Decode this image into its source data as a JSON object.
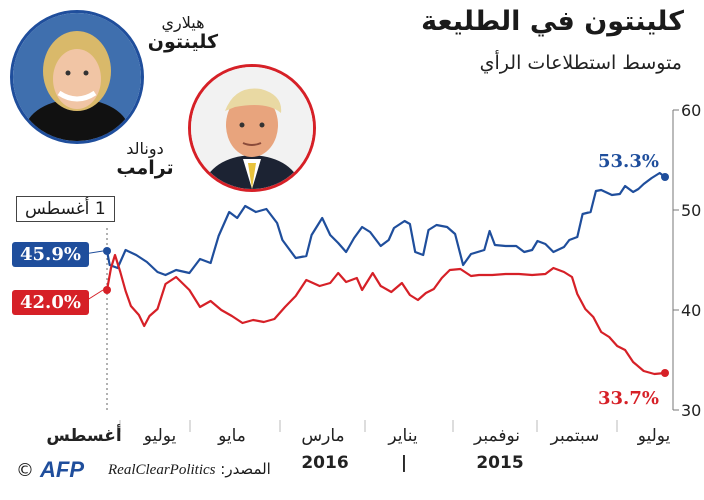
{
  "header": {
    "title": "كلينتون في الطليعة",
    "subtitle": "متوسط استطلاعات الرأي"
  },
  "candidates": {
    "clinton": {
      "first_name": "هيلاري",
      "last_name": "كلينتون",
      "color": "#1f4e9c"
    },
    "trump": {
      "first_name": "دونالد",
      "last_name": "ترامب",
      "color": "#d62027"
    }
  },
  "callouts": {
    "start_date": "1 أغسطس",
    "clinton_start": "45.9%",
    "trump_start": "42.0%",
    "clinton_end": "53.3%",
    "trump_end": "33.7%"
  },
  "footer": {
    "source_label": "المصدر:",
    "source_name": "RealClearPolitics",
    "logo_text": "AFP",
    "copyright": "©"
  },
  "chart_data": {
    "type": "line",
    "ylim": [
      30,
      60
    ],
    "y_ticks": [
      30,
      40,
      50,
      60
    ],
    "x_direction": "right-to-left",
    "x_ticks": [
      "يوليو",
      "سبتمبر",
      "نوفمبر",
      "يناير",
      "مارس",
      "مايو",
      "يوليو",
      "أغسطس"
    ],
    "years": [
      "2015",
      "|",
      "2016"
    ],
    "grid": false,
    "series": [
      {
        "name": "كلينتون",
        "color": "#1f4e9c",
        "points": [
          [
            0,
            53.3
          ],
          [
            0.2,
            53.7
          ],
          [
            0.5,
            53.2
          ],
          [
            0.8,
            52.6
          ],
          [
            1.0,
            52.1
          ],
          [
            1.2,
            51.8
          ],
          [
            1.5,
            52.4
          ],
          [
            1.7,
            51.6
          ],
          [
            2.0,
            51.5
          ],
          [
            2.4,
            52.0
          ],
          [
            2.6,
            51.9
          ],
          [
            2.8,
            49.8
          ],
          [
            3.1,
            49.6
          ],
          [
            3.3,
            47.3
          ],
          [
            3.6,
            47.0
          ],
          [
            3.8,
            46.3
          ],
          [
            4.2,
            45.8
          ],
          [
            4.5,
            46.6
          ],
          [
            4.8,
            46.9
          ],
          [
            5.0,
            46.0
          ],
          [
            5.3,
            45.8
          ],
          [
            5.6,
            46.4
          ],
          [
            6.0,
            46.4
          ],
          [
            6.4,
            46.5
          ],
          [
            6.6,
            47.9
          ],
          [
            6.8,
            46.0
          ],
          [
            7.3,
            45.6
          ],
          [
            7.6,
            44.5
          ],
          [
            7.9,
            47.6
          ],
          [
            8.2,
            48.3
          ],
          [
            8.6,
            48.5
          ],
          [
            8.9,
            48.0
          ],
          [
            9.1,
            45.5
          ],
          [
            9.4,
            45.8
          ],
          [
            9.6,
            48.6
          ],
          [
            9.8,
            48.9
          ],
          [
            10.2,
            48.2
          ],
          [
            10.4,
            47.0
          ],
          [
            10.7,
            46.4
          ],
          [
            11.1,
            47.8
          ],
          [
            11.4,
            48.3
          ],
          [
            11.7,
            47.2
          ],
          [
            12.0,
            45.8
          ],
          [
            12.3,
            46.7
          ],
          [
            12.6,
            47.5
          ],
          [
            12.9,
            49.2
          ],
          [
            13.3,
            47.5
          ],
          [
            13.5,
            45.4
          ],
          [
            13.9,
            45.2
          ],
          [
            14.4,
            47.0
          ],
          [
            14.6,
            48.7
          ],
          [
            15.0,
            50.1
          ],
          [
            15.4,
            49.8
          ],
          [
            15.8,
            50.4
          ],
          [
            16.1,
            49.2
          ],
          [
            16.4,
            49.8
          ],
          [
            16.8,
            47.4
          ],
          [
            17.1,
            44.7
          ],
          [
            17.5,
            45.1
          ],
          [
            17.9,
            43.7
          ],
          [
            18.4,
            44.0
          ],
          [
            18.8,
            43.5
          ],
          [
            19.1,
            43.8
          ],
          [
            19.5,
            44.8
          ],
          [
            19.9,
            45.5
          ],
          [
            20.3,
            46.0
          ],
          [
            20.6,
            44.2
          ],
          [
            20.9,
            44.5
          ],
          [
            21.0,
            45.9
          ]
        ]
      },
      {
        "name": "ترامب",
        "color": "#d62027",
        "points": [
          [
            0,
            33.7
          ],
          [
            0.4,
            33.6
          ],
          [
            0.8,
            33.9
          ],
          [
            1.2,
            34.8
          ],
          [
            1.5,
            36.0
          ],
          [
            1.8,
            36.4
          ],
          [
            2.1,
            37.3
          ],
          [
            2.4,
            37.8
          ],
          [
            2.7,
            39.3
          ],
          [
            3.0,
            40.1
          ],
          [
            3.3,
            41.6
          ],
          [
            3.5,
            43.3
          ],
          [
            3.8,
            43.8
          ],
          [
            4.2,
            44.2
          ],
          [
            4.5,
            43.6
          ],
          [
            5.0,
            43.5
          ],
          [
            5.5,
            43.6
          ],
          [
            6.0,
            43.6
          ],
          [
            6.5,
            43.5
          ],
          [
            7.0,
            43.5
          ],
          [
            7.3,
            43.4
          ],
          [
            7.7,
            44.1
          ],
          [
            8.1,
            44.0
          ],
          [
            8.4,
            43.2
          ],
          [
            8.7,
            42.1
          ],
          [
            9.0,
            41.7
          ],
          [
            9.3,
            41.0
          ],
          [
            9.6,
            41.5
          ],
          [
            9.9,
            42.7
          ],
          [
            10.3,
            41.8
          ],
          [
            10.7,
            42.4
          ],
          [
            11.0,
            43.7
          ],
          [
            11.4,
            42.0
          ],
          [
            11.6,
            43.2
          ],
          [
            12.0,
            42.8
          ],
          [
            12.3,
            43.7
          ],
          [
            12.6,
            42.7
          ],
          [
            13.0,
            42.4
          ],
          [
            13.5,
            43.0
          ],
          [
            13.9,
            41.4
          ],
          [
            14.3,
            40.3
          ],
          [
            14.7,
            39.1
          ],
          [
            15.1,
            38.8
          ],
          [
            15.5,
            39.0
          ],
          [
            15.9,
            38.7
          ],
          [
            16.3,
            39.4
          ],
          [
            16.7,
            40.0
          ],
          [
            17.1,
            40.9
          ],
          [
            17.5,
            40.3
          ],
          [
            17.9,
            42.0
          ],
          [
            18.4,
            43.3
          ],
          [
            18.8,
            42.6
          ],
          [
            19.1,
            40.1
          ],
          [
            19.4,
            39.4
          ],
          [
            19.6,
            38.4
          ],
          [
            19.8,
            39.5
          ],
          [
            20.1,
            40.4
          ],
          [
            20.3,
            41.9
          ],
          [
            20.5,
            43.8
          ],
          [
            20.7,
            45.5
          ],
          [
            20.85,
            44.2
          ],
          [
            21.0,
            42.0
          ]
        ]
      }
    ]
  }
}
